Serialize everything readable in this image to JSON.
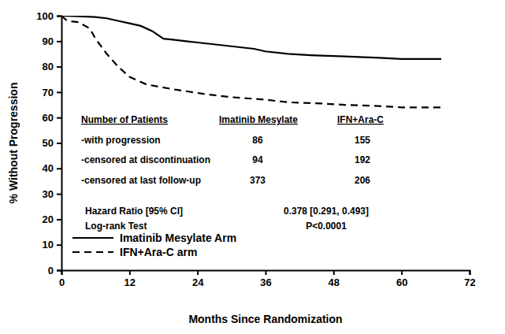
{
  "chart_data": {
    "type": "line",
    "x_label": "Months Since Randomization",
    "y_label": "% Without Progression",
    "xlim": [
      0,
      72
    ],
    "xticks": [
      0,
      12,
      24,
      36,
      48,
      60,
      72
    ],
    "ylim": [
      0,
      100
    ],
    "yticks": [
      0,
      10,
      20,
      30,
      40,
      50,
      60,
      70,
      80,
      90,
      100
    ],
    "grid": false,
    "legend": "lower left",
    "series": [
      {
        "name": "Imatinib Mesylate Arm",
        "color": "#000000",
        "line_style": "solid",
        "x": [
          0,
          3,
          6,
          8,
          10,
          12,
          14,
          16,
          18,
          20,
          22,
          26,
          30,
          34,
          36,
          40,
          44,
          50,
          56,
          60,
          67
        ],
        "values": [
          100,
          99.8,
          99.5,
          99,
          98,
          97,
          96,
          94,
          91,
          90.5,
          90,
          89,
          88,
          87,
          86,
          85,
          84.5,
          84,
          83.5,
          83,
          83
        ]
      },
      {
        "name": "IFN+Ara-C arm",
        "color": "#000000",
        "line_style": "dashed",
        "x": [
          0,
          1,
          3,
          5,
          6,
          8,
          10,
          12,
          15,
          20,
          26,
          30,
          36,
          40,
          46,
          50,
          56,
          60,
          67
        ],
        "values": [
          100,
          98,
          97.5,
          95,
          91,
          85,
          80,
          76,
          73,
          71,
          69,
          68,
          67,
          66,
          65.5,
          65,
          64.5,
          64,
          64
        ]
      }
    ],
    "annotations": {
      "table": {
        "columns": [
          "Number of Patients",
          "Imatinib Mesylate",
          "IFN+Ara-C"
        ],
        "rows": [
          [
            "-with progression",
            86,
            155
          ],
          [
            "-censored at discontinuation",
            94,
            192
          ],
          [
            "-censored at last follow-up",
            373,
            206
          ]
        ]
      },
      "statistics": [
        [
          "Hazard Ratio [95% CI]",
          "0.378 [0.291, 0.493]"
        ],
        [
          "Log-rank Test",
          "P<0.0001"
        ]
      ]
    }
  }
}
